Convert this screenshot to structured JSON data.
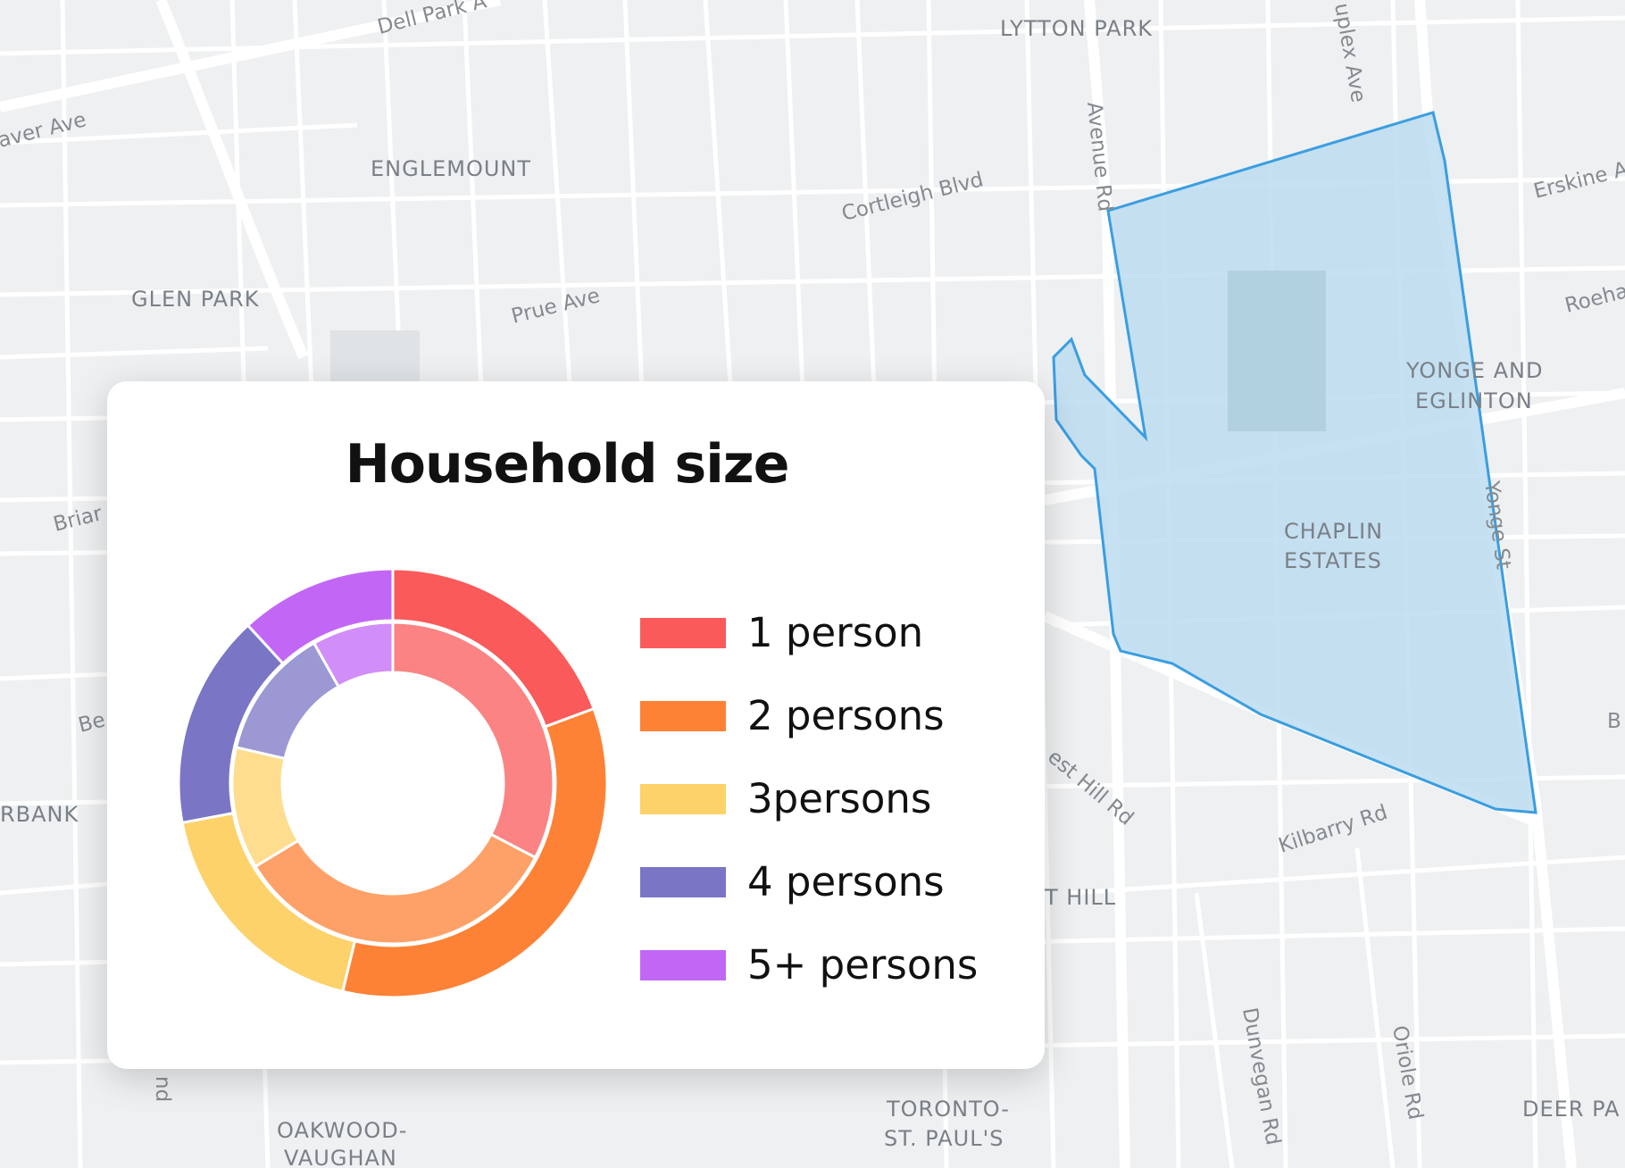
{
  "map": {
    "neighborhoods": [
      {
        "id": "lytton",
        "name": "LYTTON PARK"
      },
      {
        "id": "englemount",
        "name": "ENGLEMOUNT"
      },
      {
        "id": "glen",
        "name": "GLEN PARK"
      },
      {
        "id": "yonge1",
        "name": "YONGE AND"
      },
      {
        "id": "yonge2",
        "name": "EGLINTON"
      },
      {
        "id": "chaplin1",
        "name": "CHAPLIN"
      },
      {
        "id": "chaplin2",
        "name": "ESTATES"
      },
      {
        "id": "rbank",
        "name": "RBANK"
      },
      {
        "id": "thill",
        "name": "T HILL"
      },
      {
        "id": "oak1",
        "name": "OAKWOOD-"
      },
      {
        "id": "oak2",
        "name": "VAUGHAN"
      },
      {
        "id": "tor1",
        "name": "TORONTO-"
      },
      {
        "id": "tor2",
        "name": "ST. PAUL'S"
      },
      {
        "id": "deer",
        "name": "DEER PA"
      }
    ],
    "streets": [
      {
        "id": "dellpark",
        "name": "Dell Park A"
      },
      {
        "id": "weaver",
        "name": "aver Ave"
      },
      {
        "id": "duplex",
        "name": "uplex Ave"
      },
      {
        "id": "avenue",
        "name": "Avenue Rd"
      },
      {
        "id": "cortleigh",
        "name": "Cortleigh Blvd"
      },
      {
        "id": "erskine",
        "name": "Erskine A"
      },
      {
        "id": "prue",
        "name": "Prue Ave"
      },
      {
        "id": "roeha",
        "name": "Roeha"
      },
      {
        "id": "briar",
        "name": "Briar"
      },
      {
        "id": "yongest",
        "name": "Yonge St"
      },
      {
        "id": "be",
        "name": "Be"
      },
      {
        "id": "b",
        "name": "B"
      },
      {
        "id": "foresthill",
        "name": "est Hill Rd"
      },
      {
        "id": "kilbarry",
        "name": "Kilbarry Rd"
      },
      {
        "id": "dunvegan",
        "name": "Dunvegan Rd"
      },
      {
        "id": "oriole",
        "name": "Oriole Rd"
      },
      {
        "id": "nd",
        "name": "nd"
      }
    ],
    "colors": {
      "background": "#eef0f2",
      "road": "#ffffff",
      "park": "#dfe3e6",
      "highlight_fill": "#bcdcf0",
      "highlight_stroke": "#3a9ee0"
    }
  },
  "card": {
    "title": "Household size"
  },
  "chart_data": {
    "type": "donut",
    "title": "Household size",
    "categories": [
      "1 person",
      "2 persons",
      "3persons",
      "4 persons",
      "5+ persons"
    ],
    "series": [
      {
        "ring": "outer",
        "values": [
          18,
          32,
          17,
          15,
          11
        ]
      },
      {
        "ring": "inner",
        "values": [
          32,
          33,
          12,
          13,
          8
        ]
      }
    ],
    "colors": [
      "#fa5a5a",
      "#fd8236",
      "#fdd26a",
      "#7a75c5",
      "#c267f5"
    ],
    "legend_position": "right"
  }
}
